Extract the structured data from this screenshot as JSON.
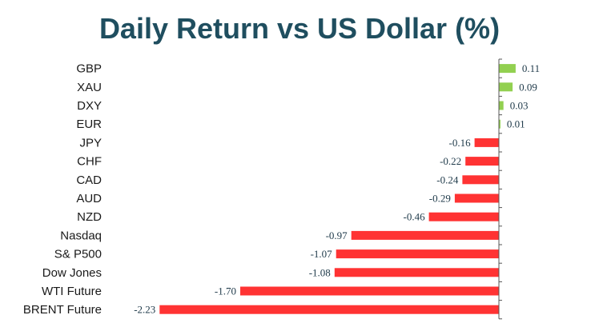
{
  "chart_data": {
    "type": "bar",
    "orientation": "horizontal",
    "title": "Daily Return vs US Dollar (%)",
    "xlabel": "",
    "ylabel": "",
    "categories": [
      "GBP",
      "XAU",
      "DXY",
      "EUR",
      "JPY",
      "CHF",
      "CAD",
      "AUD",
      "NZD",
      "Nasdaq",
      "S& P500",
      "Dow Jones",
      "WTI Future",
      "BRENT Future"
    ],
    "values": [
      0.11,
      0.09,
      0.03,
      0.01,
      -0.16,
      -0.22,
      -0.24,
      -0.29,
      -0.46,
      -0.97,
      -1.07,
      -1.08,
      -1.7,
      -2.23
    ],
    "value_labels": [
      "0.11",
      "0.09",
      "0.03",
      "0.01",
      "-0.16",
      "-0.22",
      "-0.24",
      "-0.29",
      "-0.46",
      "-0.97",
      "-1.07",
      "-1.08",
      "-1.70",
      "-2.23"
    ],
    "xlim": [
      -2.23,
      0.11
    ],
    "grid": false,
    "legend": "none",
    "colors": {
      "positive": "#92d050",
      "negative": "#ff3333",
      "axis": "#555555",
      "title": "#1f4e5f"
    }
  }
}
